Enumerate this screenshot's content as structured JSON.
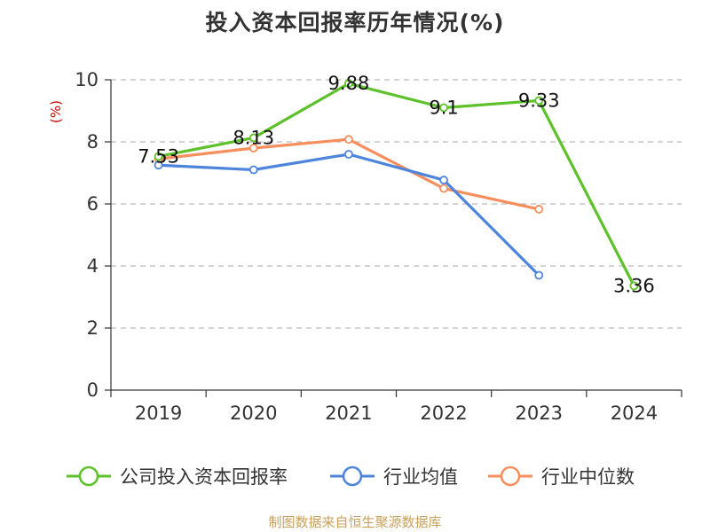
{
  "chart_data": {
    "type": "line",
    "title": "投入资本回报率历年情况(%)",
    "ylabel": "(%)",
    "xlabel": "",
    "categories": [
      "2019",
      "2020",
      "2021",
      "2022",
      "2023",
      "2024"
    ],
    "ylim": [
      0,
      10
    ],
    "yticks": [
      0,
      2,
      4,
      6,
      8,
      10
    ],
    "grid": true,
    "legend_position": "bottom",
    "series": [
      {
        "name": "公司投入资本回报率",
        "color": "#5dc22a",
        "values": [
          7.53,
          8.13,
          9.88,
          9.1,
          9.33,
          3.36
        ],
        "labels": [
          "7.53",
          "8.13",
          "9.88",
          "9.1",
          "9.33",
          "3.36"
        ]
      },
      {
        "name": "行业均值",
        "color": "#4e85dc",
        "values": [
          7.25,
          7.1,
          7.6,
          6.77,
          3.7,
          null
        ]
      },
      {
        "name": "行业中位数",
        "color": "#f78e5c",
        "values": [
          7.45,
          7.8,
          8.08,
          6.5,
          5.83,
          null
        ]
      }
    ]
  },
  "source": "制图数据来自恒生聚源数据库"
}
